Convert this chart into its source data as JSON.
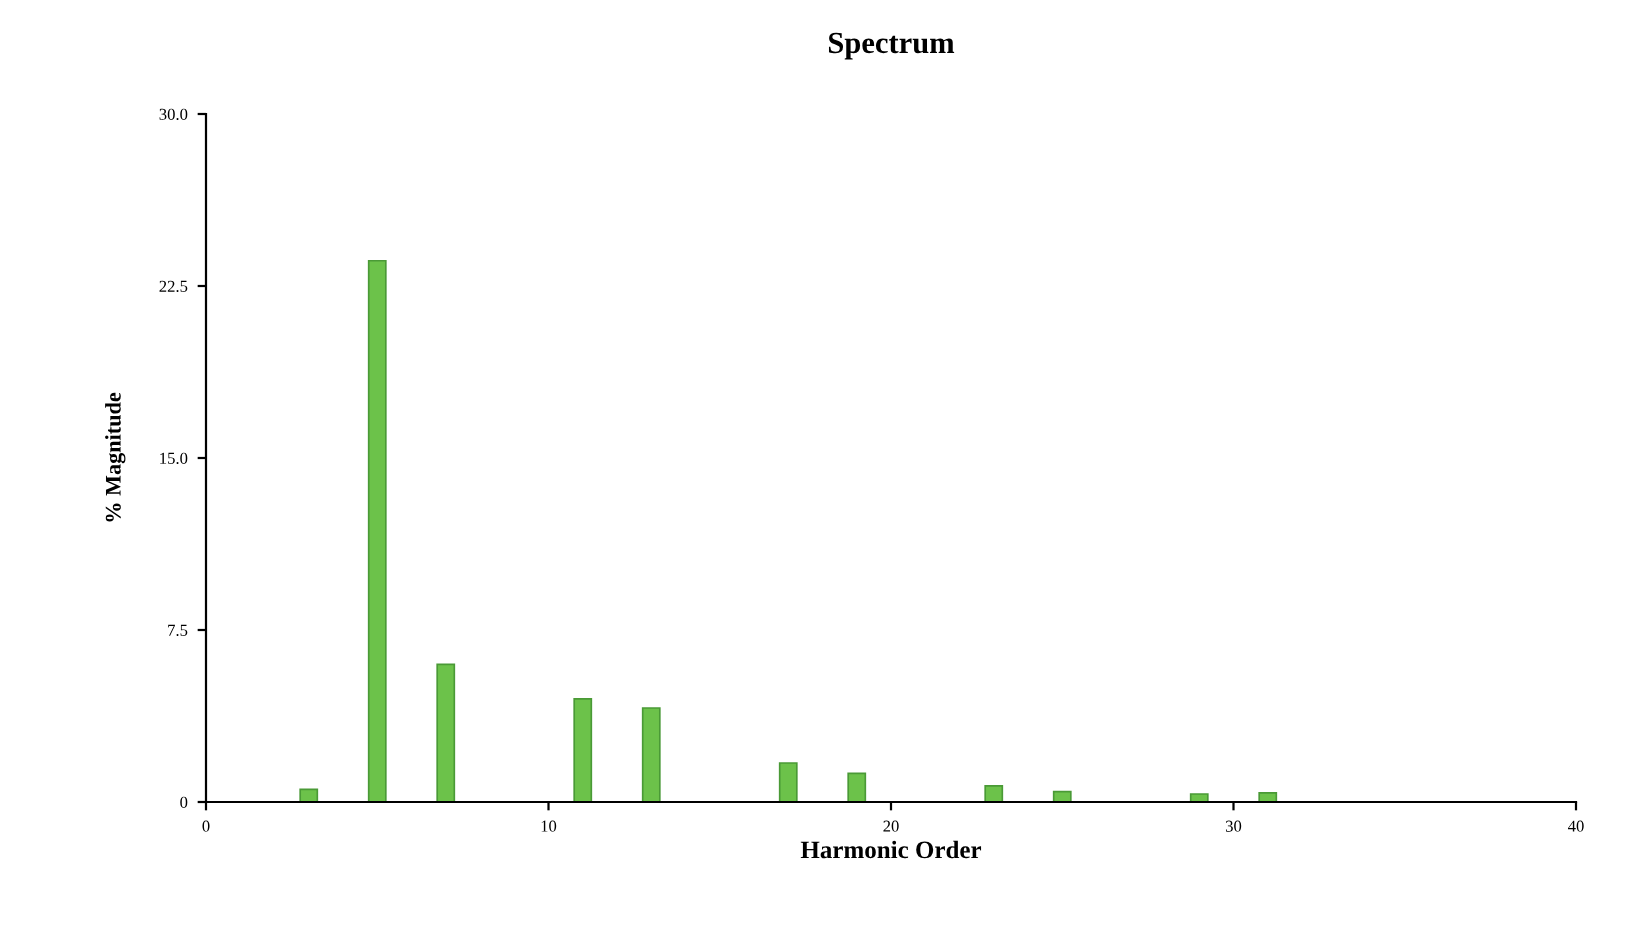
{
  "chart_data": {
    "type": "bar",
    "title": "Spectrum",
    "xlabel": "Harmonic Order",
    "ylabel": "% Magnitude",
    "x": [
      3,
      5,
      7,
      11,
      13,
      17,
      19,
      23,
      25,
      29,
      31
    ],
    "values": [
      0.55,
      23.6,
      6.0,
      4.5,
      4.1,
      1.7,
      1.25,
      0.7,
      0.45,
      0.35,
      0.4
    ],
    "color": "#6cc24a",
    "xlim": [
      0,
      40
    ],
    "xticks": [
      0,
      10,
      20,
      30,
      40
    ],
    "ylim": [
      0,
      30
    ],
    "yticks": [
      0,
      7.5,
      {
        "value": 15,
        "label": "15.0"
      },
      22.5,
      {
        "value": 30,
        "label": "30.0"
      }
    ],
    "grid": false
  }
}
